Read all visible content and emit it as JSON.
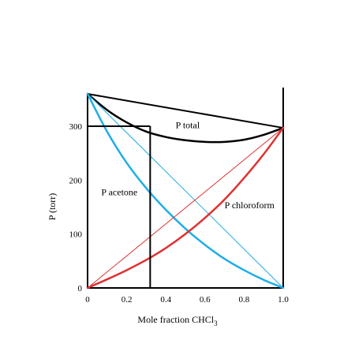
{
  "chart_data": {
    "type": "line",
    "title": "",
    "xlabel": "Mole fraction CHCl",
    "xlabel_subscript": "3",
    "ylabel": "P (torr)",
    "xlim": [
      0,
      1.0
    ],
    "ylim": [
      0,
      360
    ],
    "x_ticks": [
      "0",
      "0.2",
      "0.4",
      "0.6",
      "0.8",
      "1.0"
    ],
    "y_ticks": [
      "0",
      "100",
      "200",
      "300"
    ],
    "x_tick_values": [
      0,
      0.2,
      0.4,
      0.6,
      0.8,
      1.0
    ],
    "y_tick_values": [
      0,
      100,
      200,
      300
    ],
    "grid": false,
    "series": [
      {
        "name": "P total",
        "color": "#000000",
        "style": "curve",
        "x": [
          0,
          0.1,
          0.2,
          0.3,
          0.4,
          0.5,
          0.6,
          0.7,
          0.8,
          0.9,
          1.0
        ],
        "y": [
          360,
          330,
          307,
          290,
          280,
          274,
          271,
          271,
          275,
          284,
          297
        ]
      },
      {
        "name": "",
        "color": "#000000",
        "style": "ideal",
        "x": [
          0,
          1.0
        ],
        "y": [
          360,
          297
        ]
      },
      {
        "name": "P acetone",
        "color": "#1eaee6",
        "style": "curve",
        "x": [
          0,
          0.1,
          0.2,
          0.3,
          0.4,
          0.5,
          0.6,
          0.7,
          0.8,
          0.9,
          1.0
        ],
        "y": [
          360,
          290,
          232,
          185,
          145,
          110,
          80,
          54,
          33,
          15,
          0
        ]
      },
      {
        "name": "",
        "color": "#1eaee6",
        "style": "ideal",
        "x": [
          0,
          1.0
        ],
        "y": [
          360,
          0
        ]
      },
      {
        "name": "P chloroform",
        "color": "#e03030",
        "style": "curve",
        "x": [
          0,
          0.1,
          0.2,
          0.3,
          0.4,
          0.5,
          0.6,
          0.7,
          0.8,
          0.9,
          1.0
        ],
        "y": [
          0,
          16,
          33,
          52,
          74,
          100,
          130,
          164,
          204,
          248,
          297
        ]
      },
      {
        "name": "",
        "color": "#e03030",
        "style": "ideal",
        "x": [
          0,
          1.0
        ],
        "y": [
          0,
          297
        ]
      }
    ],
    "reference_lines": [
      {
        "x": [
          0,
          0.32
        ],
        "y": [
          300,
          300
        ]
      },
      {
        "x": [
          0.32,
          0.32
        ],
        "y": [
          300,
          0
        ]
      }
    ],
    "annotations": [
      {
        "text": "P  total",
        "x": 0.45,
        "y": 296
      },
      {
        "text": "P  acetone",
        "x": 0.07,
        "y": 172
      },
      {
        "text": "P  chloroform",
        "x": 0.7,
        "y": 148
      }
    ]
  }
}
